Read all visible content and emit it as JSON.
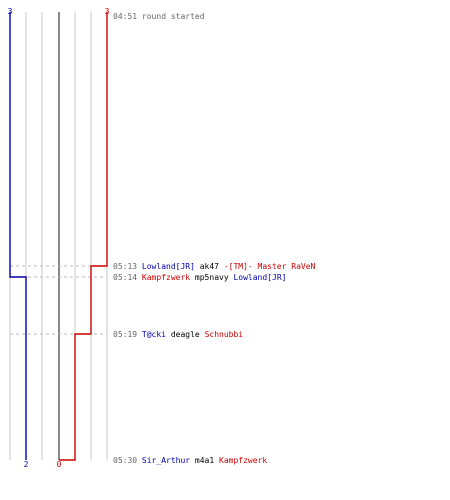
{
  "colors": {
    "team_blue": "#0000aa",
    "team_red": "#cc0000",
    "text_dark": "#000000",
    "text_time": "#666666",
    "grid_line": "#c8c8c8",
    "center_line": "#555555",
    "guide_dash": "#bbbbbb"
  },
  "round": {
    "start_time": "04:51",
    "start_text": "round started",
    "blue_start": "3",
    "red_start": "3",
    "blue_end": "2",
    "red_end": "0",
    "blue_level_start": 3,
    "blue_level_end": 2,
    "red_level_start": 3,
    "red_level_end": 0
  },
  "events": [
    {
      "time": "05:13",
      "killer": "Lowland[JR]",
      "killer_team": "blue",
      "weapon": "ak47",
      "victim": "-[TM]- Master RaVeN",
      "victim_team": "red"
    },
    {
      "time": "05:14",
      "killer": "Kampfzwerk",
      "killer_team": "red",
      "weapon": "mp5navy",
      "victim": "Lowland[JR]",
      "victim_team": "blue"
    },
    {
      "time": "05:19",
      "killer": "T@cki",
      "killer_team": "blue",
      "weapon": "deagle",
      "victim": "Schnubbi",
      "victim_team": "red"
    },
    {
      "time": "05:30",
      "killer": "Sir_Arthur",
      "killer_team": "blue",
      "weapon": "m4a1",
      "victim": "Kampfzwerk",
      "victim_team": "red"
    }
  ]
}
